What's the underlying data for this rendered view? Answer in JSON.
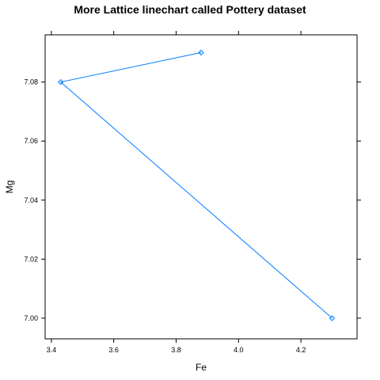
{
  "chart_data": {
    "type": "line",
    "title": "More Lattice linechart called Pottery dataset",
    "xlabel": "Fe",
    "ylabel": "Mg",
    "xlim": [
      3.38,
      4.38
    ],
    "ylim": [
      6.993,
      7.096
    ],
    "x_ticks": [
      3.4,
      3.6,
      3.8,
      4.0,
      4.2
    ],
    "x_tick_labels": [
      "3.4",
      "3.6",
      "3.8",
      "4.0",
      "4.2"
    ],
    "y_ticks": [
      7.0,
      7.02,
      7.04,
      7.06,
      7.08
    ],
    "y_tick_labels": [
      "7.00",
      "7.02",
      "7.04",
      "7.06",
      "7.08"
    ],
    "grid": false,
    "series": [
      {
        "color": "#0080ff",
        "marker": "diamond",
        "x": [
          3.88,
          3.43,
          4.3
        ],
        "y": [
          7.09,
          7.08,
          7.0
        ]
      }
    ]
  }
}
